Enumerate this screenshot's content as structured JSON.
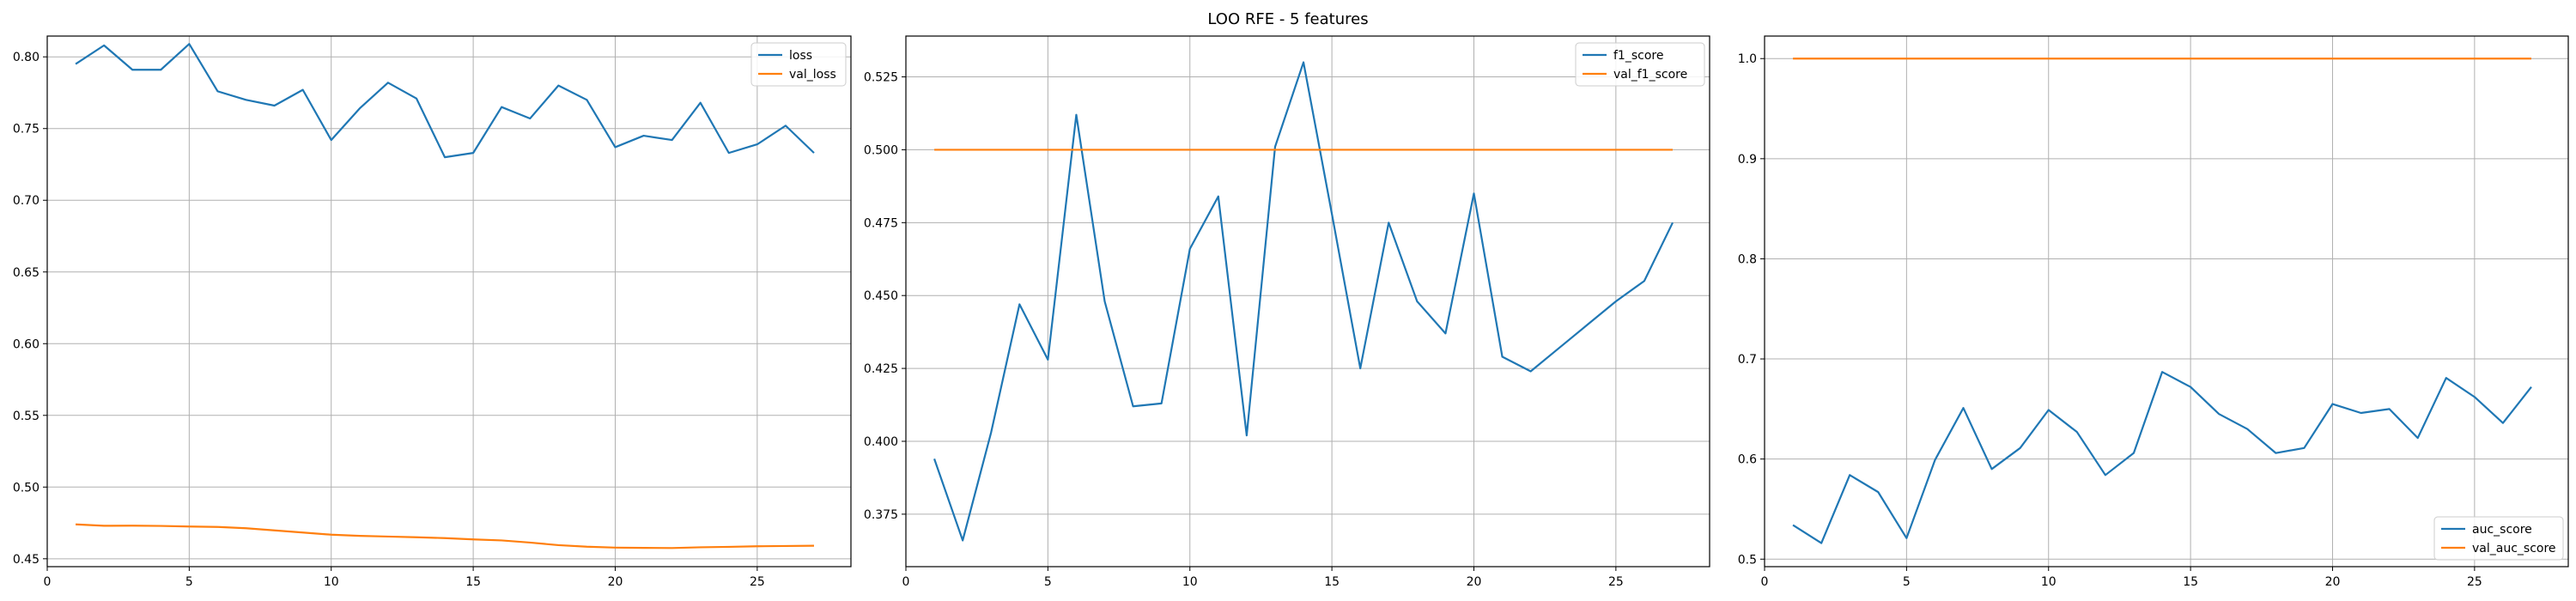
{
  "figure": {
    "suptitle": "LOO RFE - 5 features",
    "colors": {
      "series1": "#1f77b4",
      "series2": "#ff7f0e",
      "grid": "#b0b0b0"
    }
  },
  "chart_data": [
    {
      "type": "line",
      "grid": true,
      "legend_position": "top-right",
      "xlim": [
        0,
        28.3
      ],
      "ylim": [
        0.4445,
        0.8145
      ],
      "xticks": [
        0,
        5,
        10,
        15,
        20,
        25
      ],
      "yticks": [
        0.45,
        0.5,
        0.55,
        0.6,
        0.65,
        0.7,
        0.75,
        0.8
      ],
      "ytick_labels": [
        "0.45",
        "0.50",
        "0.55",
        "0.60",
        "0.65",
        "0.70",
        "0.75",
        "0.80"
      ],
      "x": [
        1,
        2,
        3,
        4,
        5,
        6,
        7,
        8,
        9,
        10,
        11,
        12,
        13,
        14,
        15,
        16,
        17,
        18,
        19,
        20,
        21,
        22,
        23,
        24,
        25,
        26,
        27
      ],
      "series": [
        {
          "name": "loss",
          "values": [
            0.795,
            0.808,
            0.791,
            0.791,
            0.809,
            0.776,
            0.77,
            0.766,
            0.777,
            0.742,
            0.764,
            0.782,
            0.771,
            0.73,
            0.733,
            0.765,
            0.757,
            0.78,
            0.77,
            0.737,
            0.745,
            0.742,
            0.768,
            0.733,
            0.739,
            0.752,
            0.733
          ]
        },
        {
          "name": "val_loss",
          "values": [
            0.474,
            0.473,
            0.4731,
            0.4729,
            0.4725,
            0.4722,
            0.4713,
            0.4698,
            0.4683,
            0.4668,
            0.466,
            0.4655,
            0.465,
            0.4644,
            0.4635,
            0.4628,
            0.4613,
            0.4595,
            0.4584,
            0.4578,
            0.4576,
            0.4575,
            0.458,
            0.4583,
            0.4587,
            0.4589,
            0.4591
          ]
        }
      ]
    },
    {
      "type": "line",
      "grid": true,
      "legend_position": "top-right",
      "xlim": [
        0,
        28.3
      ],
      "ylim": [
        0.357,
        0.539
      ],
      "xticks": [
        0,
        5,
        10,
        15,
        20,
        25
      ],
      "yticks": [
        0.375,
        0.4,
        0.425,
        0.45,
        0.475,
        0.5,
        0.525
      ],
      "ytick_labels": [
        "0.375",
        "0.400",
        "0.425",
        "0.450",
        "0.475",
        "0.500",
        "0.525"
      ],
      "x": [
        1,
        2,
        3,
        4,
        5,
        6,
        7,
        8,
        9,
        10,
        11,
        12,
        13,
        14,
        15,
        16,
        17,
        18,
        19,
        20,
        21,
        22,
        23,
        24,
        25,
        26,
        27
      ],
      "series": [
        {
          "name": "f1_score",
          "values": [
            0.394,
            0.366,
            0.403,
            0.447,
            0.428,
            0.512,
            0.448,
            0.412,
            0.413,
            0.466,
            0.484,
            0.402,
            0.501,
            0.53,
            0.478,
            0.425,
            0.475,
            0.448,
            0.437,
            0.485,
            0.429,
            0.424,
            0.432,
            0.44,
            0.448,
            0.455,
            0.475
          ]
        },
        {
          "name": "val_f1_score",
          "values": [
            0.5,
            0.5,
            0.5,
            0.5,
            0.5,
            0.5,
            0.5,
            0.5,
            0.5,
            0.5,
            0.5,
            0.5,
            0.5,
            0.5,
            0.5,
            0.5,
            0.5,
            0.5,
            0.5,
            0.5,
            0.5,
            0.5,
            0.5,
            0.5,
            0.5,
            0.5,
            0.5
          ]
        }
      ]
    },
    {
      "type": "line",
      "grid": true,
      "legend_position": "bottom-right",
      "xlim": [
        0,
        28.3
      ],
      "ylim": [
        0.4925,
        1.0225
      ],
      "xticks": [
        0,
        5,
        10,
        15,
        20,
        25
      ],
      "yticks": [
        0.5,
        0.6,
        0.7,
        0.8,
        0.9,
        1.0
      ],
      "ytick_labels": [
        "0.5",
        "0.6",
        "0.7",
        "0.8",
        "0.9",
        "1.0"
      ],
      "x": [
        1,
        2,
        3,
        4,
        5,
        6,
        7,
        8,
        9,
        10,
        11,
        12,
        13,
        14,
        15,
        16,
        17,
        18,
        19,
        20,
        21,
        22,
        23,
        24,
        25,
        26,
        27
      ],
      "series": [
        {
          "name": "auc_score",
          "values": [
            0.534,
            0.516,
            0.584,
            0.567,
            0.521,
            0.599,
            0.651,
            0.59,
            0.611,
            0.649,
            0.627,
            0.584,
            0.606,
            0.687,
            0.672,
            0.645,
            0.63,
            0.606,
            0.611,
            0.655,
            0.646,
            0.65,
            0.621,
            0.681,
            0.662,
            0.636,
            0.672
          ]
        },
        {
          "name": "val_auc_score",
          "values": [
            1.0,
            1.0,
            1.0,
            1.0,
            1.0,
            1.0,
            1.0,
            1.0,
            1.0,
            1.0,
            1.0,
            1.0,
            1.0,
            1.0,
            1.0,
            1.0,
            1.0,
            1.0,
            1.0,
            1.0,
            1.0,
            1.0,
            1.0,
            1.0,
            1.0,
            1.0,
            1.0
          ]
        }
      ]
    }
  ]
}
